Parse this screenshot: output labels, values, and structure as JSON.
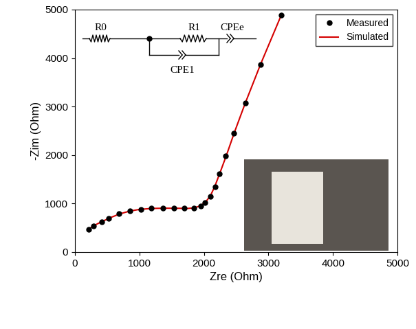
{
  "chart_data": {
    "type": "scatter",
    "x_label": "Zre (Ohm)",
    "y_label": "-Zim (Ohm)",
    "xlim": [
      0,
      5000
    ],
    "ylim": [
      0,
      5000
    ],
    "xticks": [
      0,
      1000,
      2000,
      3000,
      4000,
      5000
    ],
    "yticks": [
      0,
      1000,
      2000,
      3000,
      4000,
      5000
    ],
    "grid": false,
    "legend": "upper right",
    "series": [
      {
        "name": "Measured",
        "type": "scatter",
        "color": "#000000",
        "marker": "o",
        "x": [
          210,
          290,
          420,
          520,
          680,
          850,
          1020,
          1180,
          1360,
          1530,
          1700,
          1840,
          1950,
          2020,
          2100,
          2170,
          2240,
          2340,
          2460,
          2640,
          2880,
          3200
        ],
        "values": [
          470,
          540,
          620,
          700,
          790,
          850,
          880,
          900,
          905,
          905,
          900,
          910,
          950,
          1020,
          1150,
          1350,
          1620,
          1980,
          2450,
          3070,
          3870,
          4880
        ]
      },
      {
        "name": "Simulated",
        "type": "line",
        "color": "#d40000",
        "line_style": "solid",
        "x": [
          200,
          300,
          420,
          550,
          700,
          850,
          1000,
          1200,
          1400,
          1600,
          1750,
          1850,
          1950,
          2030,
          2100,
          2170,
          2250,
          2350,
          2470,
          2640,
          2880,
          3200
        ],
        "values": [
          460,
          550,
          630,
          710,
          790,
          845,
          880,
          900,
          905,
          903,
          900,
          912,
          955,
          1040,
          1160,
          1360,
          1640,
          2000,
          2460,
          3070,
          3880,
          4890
        ]
      }
    ],
    "circuit": {
      "labels": [
        "R0",
        "R1",
        "CPEe",
        "CPE1"
      ]
    }
  }
}
